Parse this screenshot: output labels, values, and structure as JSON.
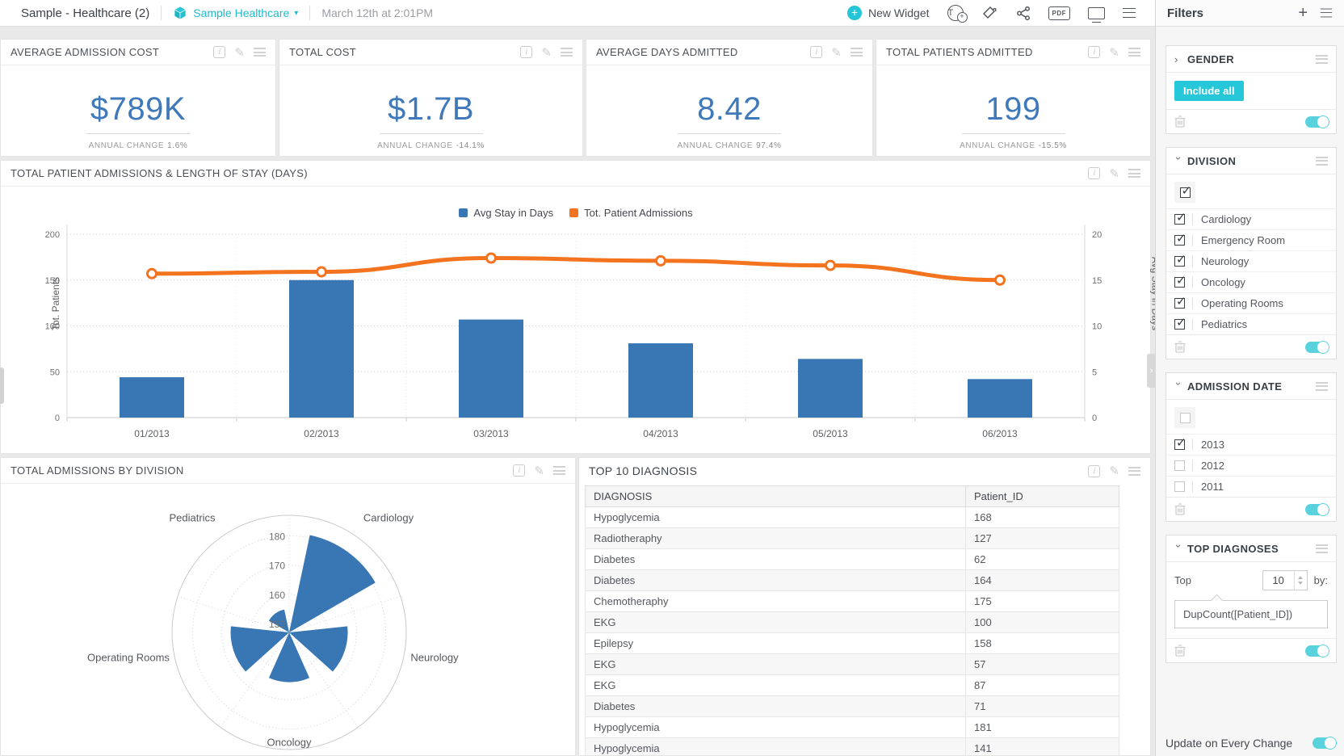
{
  "colors": {
    "accent": "#25c7d9",
    "link": "#1fb9cc",
    "bar_blue": "#3876b4",
    "line_orange": "#f4731e",
    "kpi_blue": "#4079ba"
  },
  "topbar": {
    "dashboard_title": "Sample - Healthcare (2)",
    "datasource_label": "Sample Healthcare",
    "timestamp": "March 12th at 2:01PM",
    "new_widget_label": "New Widget",
    "pdf_icon_label": "PDF"
  },
  "kpis": [
    {
      "title": "AVERAGE ADMISSION COST",
      "value": "$789K",
      "change_label": "ANNUAL CHANGE",
      "change": "1.6%"
    },
    {
      "title": "TOTAL COST",
      "value": "$1.7B",
      "change_label": "ANNUAL CHANGE",
      "change": "-14.1%"
    },
    {
      "title": "AVERAGE DAYS ADMITTED",
      "value": "8.42",
      "change_label": "ANNUAL CHANGE",
      "change": "97.4%"
    },
    {
      "title": "TOTAL PATIENTS ADMITTED",
      "value": "199",
      "change_label": "ANNUAL CHANGE",
      "change": "-15.5%"
    }
  ],
  "widgets": {
    "combo": {
      "title": "TOTAL PATIENT ADMISSIONS & LENGTH OF STAY (DAYS)"
    },
    "rose": {
      "title": "TOTAL ADMISSIONS BY DIVISION"
    },
    "table": {
      "title": "TOP 10 DIAGNOSIS",
      "columns": [
        "DIAGNOSIS",
        "Patient_ID"
      ],
      "rows": [
        [
          "Hypoglycemia",
          "168"
        ],
        [
          "Radiotheraphy",
          "127"
        ],
        [
          "Diabetes",
          "62"
        ],
        [
          "Diabetes",
          "164"
        ],
        [
          "Chemotheraphy",
          "175"
        ],
        [
          "EKG",
          "100"
        ],
        [
          "Epilepsy",
          "158"
        ],
        [
          "EKG",
          "57"
        ],
        [
          "EKG",
          "87"
        ],
        [
          "Diabetes",
          "71"
        ],
        [
          "Hypoglycemia",
          "181"
        ],
        [
          "Hypoglycemia",
          "141"
        ]
      ]
    }
  },
  "chart_data": [
    {
      "type": "bar",
      "title": "TOTAL PATIENT ADMISSIONS & LENGTH OF STAY (DAYS)",
      "categories": [
        "01/2013",
        "02/2013",
        "03/2013",
        "04/2013",
        "05/2013",
        "06/2013"
      ],
      "series": [
        {
          "name": "Avg Stay in Days",
          "type": "bar",
          "axis": "right",
          "color": "#3876b4",
          "values": [
            4.4,
            15,
            10.7,
            8.1,
            6.4,
            4.2
          ]
        },
        {
          "name": "Tot. Patient Admissions",
          "type": "line",
          "axis": "left",
          "color": "#f4731e",
          "values": [
            157,
            159,
            174,
            171,
            166,
            150
          ]
        }
      ],
      "left_axis": {
        "label": "Tot. Patients",
        "ticks": [
          0,
          50,
          100,
          150,
          200
        ],
        "range": [
          0,
          200
        ]
      },
      "right_axis": {
        "label": "Avg Stay in Days",
        "ticks": [
          0,
          5,
          10,
          15,
          20
        ],
        "range": [
          0,
          20
        ]
      },
      "legend_position": "top",
      "grid": true
    },
    {
      "type": "bar",
      "subtype": "polar-rose",
      "title": "TOTAL ADMISSIONS BY DIVISION",
      "categories": [
        "Cardiology",
        "Neurology",
        "Oncology",
        "Operating Rooms",
        "Pediatrics"
      ],
      "values": [
        181,
        167,
        164,
        167,
        155
      ],
      "radial_ticks": [
        150,
        160,
        170,
        180
      ],
      "radial_range": [
        147,
        187
      ],
      "color": "#3876b4",
      "grid": true,
      "legend_position": "none"
    }
  ],
  "filters": {
    "title": "Filters",
    "update_label": "Update on Every Change",
    "sections": [
      {
        "title": "GENDER",
        "collapsed": true,
        "type": "chip",
        "chip_label": "Include all",
        "enabled": true
      },
      {
        "title": "DIVISION",
        "collapsed": false,
        "type": "checklist",
        "select_all_checked": true,
        "enabled": true,
        "items": [
          {
            "label": "Cardiology",
            "checked": true
          },
          {
            "label": "Emergency Room",
            "checked": true
          },
          {
            "label": "Neurology",
            "checked": true
          },
          {
            "label": "Oncology",
            "checked": true
          },
          {
            "label": "Operating Rooms",
            "checked": true
          },
          {
            "label": "Pediatrics",
            "checked": true
          }
        ]
      },
      {
        "title": "ADMISSION DATE",
        "collapsed": false,
        "type": "checklist",
        "select_all_checked": false,
        "enabled": true,
        "items": [
          {
            "label": "2013",
            "checked": true
          },
          {
            "label": "2012",
            "checked": false
          },
          {
            "label": "2011",
            "checked": false
          }
        ]
      },
      {
        "title": "TOP DIAGNOSES",
        "collapsed": false,
        "type": "top-n",
        "enabled": true,
        "top_label": "Top",
        "top_value": "10",
        "by_label": "by:",
        "formula": "DupCount([Patient_ID])"
      }
    ]
  }
}
